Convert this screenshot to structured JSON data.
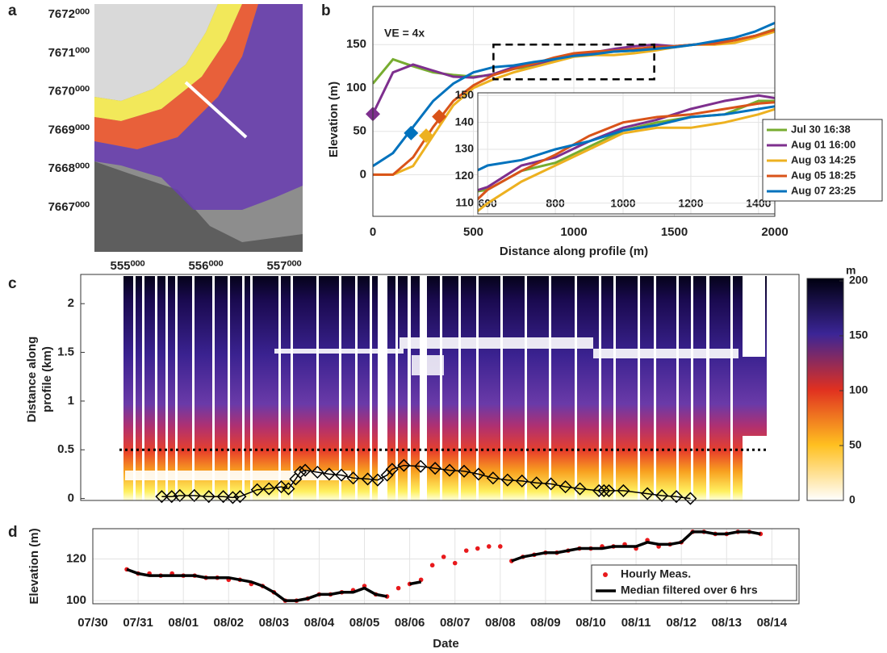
{
  "chart_data": [
    {
      "type": "map",
      "panel_label": "a",
      "xlim": [
        554577,
        557237
      ],
      "ylim": [
        7665850,
        7672272
      ],
      "xticks": [
        {
          "value": 555000,
          "label": "555⁰⁰⁰"
        },
        {
          "value": 556000,
          "label": "556⁰⁰⁰"
        },
        {
          "value": 557000,
          "label": "557⁰⁰⁰"
        }
      ],
      "yticks": [
        {
          "value": 7667000,
          "label": "7667⁰⁰⁰"
        },
        {
          "value": 7668000,
          "label": "7668⁰⁰⁰"
        },
        {
          "value": 7669000,
          "label": "7669⁰⁰⁰"
        },
        {
          "value": 7670000,
          "label": "7670⁰⁰⁰"
        },
        {
          "value": 7671000,
          "label": "7671⁰⁰⁰"
        },
        {
          "value": 7672000,
          "label": "7672⁰⁰⁰"
        }
      ]
    },
    {
      "type": "line",
      "panel_label": "b",
      "annotation": "VE = 4x",
      "xlabel": "Distance along profile (m)",
      "ylabel": "Elevation (m)",
      "x": [
        0,
        100,
        200,
        300,
        400,
        500,
        600,
        700,
        800,
        900,
        1000,
        1100,
        1200,
        1300,
        1400,
        1500,
        1600,
        1700,
        1800,
        1900,
        2000
      ],
      "series": [
        {
          "name": "Jul 30 16:38",
          "color": "#77ac30",
          "values": [
            105,
            133,
            125,
            118,
            115,
            113,
            115,
            122,
            125,
            131,
            137,
            140,
            142,
            143,
            148,
            148,
            150,
            152,
            155,
            160,
            168
          ]
        },
        {
          "name": "Aug 01 16:00",
          "color": "#7e2f8e",
          "values": [
            70,
            118,
            127,
            120,
            113,
            112,
            116,
            124,
            127,
            133,
            138,
            141,
            145,
            148,
            150,
            148,
            150,
            152,
            155,
            160,
            167
          ],
          "marker": [
            0,
            70
          ]
        },
        {
          "name": "Aug 03 14:25",
          "color": "#edb120",
          "values": [
            0,
            0,
            10,
            45,
            80,
            100,
            110,
            118,
            124,
            130,
            136,
            138,
            138,
            140,
            143,
            147,
            150,
            150,
            152,
            158,
            165
          ],
          "marker": [
            265,
            45
          ]
        },
        {
          "name": "Aug 05 18:25",
          "color": "#d95319",
          "values": [
            0,
            0,
            20,
            55,
            85,
            103,
            115,
            122,
            128,
            135,
            140,
            142,
            143,
            145,
            147,
            148,
            150,
            151,
            155,
            160,
            167
          ],
          "marker": [
            330,
            67
          ]
        },
        {
          "name": "Aug 07 23:25",
          "color": "#0072bd",
          "values": [
            10,
            25,
            55,
            85,
            105,
            118,
            124,
            126,
            130,
            133,
            137,
            139,
            142,
            143,
            145,
            147,
            150,
            154,
            158,
            165,
            175
          ],
          "marker": [
            190,
            48
          ]
        }
      ],
      "xlim": [
        0,
        2000
      ],
      "ylim": [
        -48,
        194
      ],
      "xticks": [
        0,
        500,
        1000,
        1500,
        2000
      ],
      "yticks": [
        0,
        50,
        100,
        150
      ],
      "grid": true,
      "legend": "right",
      "zoom_box": {
        "x": [
          600,
          1400
        ],
        "y": [
          110,
          150
        ]
      },
      "inset": {
        "xlim": [
          571,
          1448
        ],
        "ylim": [
          106,
          151
        ],
        "xticks": [
          600,
          800,
          1000,
          1200,
          1400
        ],
        "yticks": [
          110,
          120,
          130,
          140,
          150
        ]
      }
    },
    {
      "type": "heatmap",
      "panel_label": "c",
      "ylabel": [
        "Distance along",
        "profile (km)"
      ],
      "xlim": [
        -0.27,
        15.6
      ],
      "ylim": [
        -0.02,
        2.3
      ],
      "yticks": [
        0,
        0.5,
        1,
        1.5,
        2
      ],
      "hline": 0.5,
      "series": [
        {
          "color": "#000000",
          "x": [
            1.52,
            1.74,
            1.92,
            2.24,
            2.56,
            2.88,
            3.09,
            3.25,
            3.63,
            3.89,
            4.16,
            4.32,
            4.48,
            4.58,
            4.69,
            4.96,
            5.22,
            5.49,
            5.75,
            6.07,
            6.29,
            6.5,
            6.61,
            6.87,
            7.24,
            7.56,
            7.88,
            8.2,
            8.52,
            8.84,
            9.16,
            9.48,
            9.8,
            10.12,
            10.44,
            10.76,
            11.18,
            11.29,
            11.4,
            11.72,
            12.25,
            12.57,
            12.89,
            13.2
          ],
          "values": [
            0.02,
            0.02,
            0.03,
            0.03,
            0.02,
            0.02,
            0.01,
            0.02,
            0.09,
            0.1,
            0.12,
            0.1,
            0.2,
            0.27,
            0.29,
            0.27,
            0.25,
            0.24,
            0.21,
            0.2,
            0.19,
            0.24,
            0.3,
            0.34,
            0.33,
            0.31,
            0.29,
            0.28,
            0.25,
            0.21,
            0.19,
            0.18,
            0.16,
            0.15,
            0.12,
            0.1,
            0.08,
            0.08,
            0.08,
            0.08,
            0.05,
            0.03,
            0.02,
            0
          ]
        }
      ],
      "colorbar": {
        "label": "m",
        "lim": [
          0,
          200
        ],
        "ticks": [
          0,
          50,
          100,
          150,
          200
        ]
      }
    },
    {
      "type": "scatter",
      "panel_label": "d",
      "xlabel": "Date",
      "ylabel": "Elevation (m)",
      "x": [
        0.75,
        1,
        1.25,
        1.5,
        1.75,
        2,
        2.25,
        2.5,
        2.75,
        3,
        3.25,
        3.5,
        3.75,
        4,
        4.25,
        4.5,
        4.75,
        5,
        5.25,
        5.5,
        5.75,
        6,
        6.25,
        6.5,
        6.75,
        7,
        7.25,
        7.5,
        7.75,
        8,
        8.25,
        8.5,
        8.75,
        9,
        9.25,
        9.5,
        9.75,
        10,
        10.25,
        10.5,
        10.75,
        11,
        11.25,
        11.5,
        11.75,
        12,
        12.25,
        12.5,
        12.75,
        13,
        13.25,
        13.5,
        13.75,
        14,
        14.25,
        14.5,
        14.75
      ],
      "series": [
        {
          "name": "Hourly Meas.",
          "color": "#e8191c",
          "mode": "markers",
          "values": [
            115,
            113,
            113,
            112,
            113,
            112,
            112,
            111,
            111,
            110,
            110,
            108,
            107,
            104,
            100,
            100,
            101,
            103,
            103,
            104,
            105,
            107,
            103,
            102,
            106,
            108,
            110,
            117,
            121,
            118,
            124,
            125,
            126,
            126,
            119,
            121,
            122,
            123,
            123,
            124,
            125,
            125,
            126,
            126,
            127,
            125,
            129,
            126,
            127,
            128,
            133,
            133,
            132,
            132,
            133,
            133,
            132
          ]
        },
        {
          "name": "Median filtered over 6 hrs",
          "color": "#000000",
          "mode": "lines",
          "values": [
            115,
            113,
            112,
            112,
            112,
            112,
            112,
            111,
            111,
            111,
            110,
            109,
            107,
            104,
            100,
            100,
            101,
            103,
            103,
            104,
            104,
            106,
            103,
            102,
            null,
            108,
            109,
            null,
            null,
            null,
            null,
            null,
            null,
            null,
            119,
            121,
            122,
            123,
            123,
            124,
            125,
            125,
            125,
            126,
            126,
            126,
            128,
            127,
            127,
            128,
            133,
            133,
            132,
            132,
            133,
            133,
            132
          ]
        }
      ],
      "xlim": [
        0,
        15.6
      ],
      "ylim": [
        98.5,
        134.5
      ],
      "xticks": [
        {
          "value": 0,
          "label": "07/30"
        },
        {
          "value": 1,
          "label": "07/31"
        },
        {
          "value": 2,
          "label": "08/01"
        },
        {
          "value": 3,
          "label": "08/02"
        },
        {
          "value": 4,
          "label": "08/03"
        },
        {
          "value": 5,
          "label": "08/04"
        },
        {
          "value": 6,
          "label": "08/05"
        },
        {
          "value": 7,
          "label": "08/06"
        },
        {
          "value": 8,
          "label": "08/07"
        },
        {
          "value": 9,
          "label": "08/08"
        },
        {
          "value": 10,
          "label": "08/09"
        },
        {
          "value": 11,
          "label": "08/10"
        },
        {
          "value": 12,
          "label": "08/11"
        },
        {
          "value": 13,
          "label": "08/12"
        },
        {
          "value": 14,
          "label": "08/13"
        },
        {
          "value": 15,
          "label": "08/14"
        }
      ],
      "yticks": [
        100,
        120
      ],
      "grid": true,
      "legend": "lower right"
    }
  ]
}
